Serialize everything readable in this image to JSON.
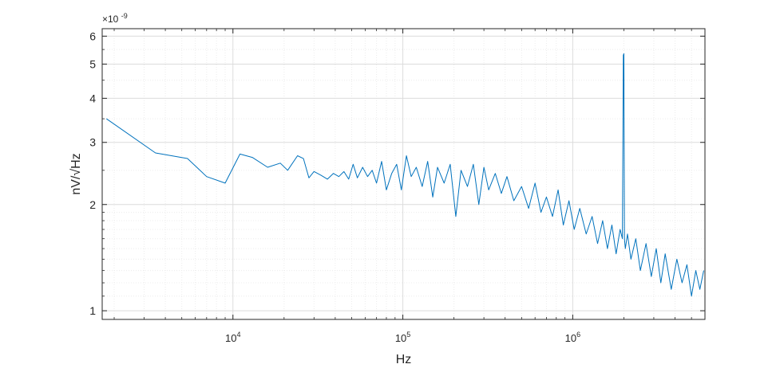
{
  "chart_data": {
    "type": "line",
    "xlabel": "Hz",
    "ylabel": "nV/√Hz",
    "x_scale": "log",
    "y_scale": "log",
    "xlim": [
      1700,
      6000000
    ],
    "ylim": [
      9.45e-10,
      6.3e-09
    ],
    "y_exponent_label": "×10",
    "y_exponent_value": "-9",
    "x_ticks": [
      {
        "value": 10000,
        "base": "10",
        "exp": "4"
      },
      {
        "value": 100000,
        "base": "10",
        "exp": "5"
      },
      {
        "value": 1000000,
        "base": "10",
        "exp": "6"
      }
    ],
    "y_ticks": [
      {
        "value": 1e-09,
        "label": "1"
      },
      {
        "value": 2e-09,
        "label": "2"
      },
      {
        "value": 3e-09,
        "label": "3"
      },
      {
        "value": 4e-09,
        "label": "4"
      },
      {
        "value": 5e-09,
        "label": "5"
      },
      {
        "value": 6e-09,
        "label": "6"
      }
    ],
    "grid": true,
    "minor_grid": true,
    "line_color": "#0072BD",
    "series": [
      {
        "x": [
          1800,
          3500,
          5400,
          7000,
          9000,
          11000,
          13000,
          16000,
          19000,
          21000,
          24000,
          26000,
          28000,
          30000,
          33000,
          36000,
          39000,
          42000,
          45000,
          48000,
          51000,
          54000,
          58000,
          62000,
          66000,
          70000,
          75000,
          80000,
          86000,
          92000,
          98000,
          105000,
          112000,
          120000,
          130000,
          140000,
          150000,
          160000,
          175000,
          190000,
          205000,
          220000,
          240000,
          260000,
          280000,
          300000,
          320000,
          350000,
          380000,
          410000,
          450000,
          500000,
          550000,
          600000,
          650000,
          700000,
          760000,
          820000,
          880000,
          950000,
          1020000,
          1100000,
          1200000,
          1300000,
          1400000,
          1500000,
          1600000,
          1700000,
          1800000,
          1900000,
          1960000,
          1985000,
          2000000,
          2015000,
          2040000,
          2100000,
          2200000,
          2350000,
          2500000,
          2700000,
          2900000,
          3100000,
          3300000,
          3500000,
          3800000,
          4100000,
          4400000,
          4700000,
          5000000,
          5300000,
          5600000,
          5900000
        ],
        "values": [
          3.5e-09,
          2.8e-09,
          2.7e-09,
          2.4e-09,
          2.3e-09,
          2.78e-09,
          2.72e-09,
          2.55e-09,
          2.62e-09,
          2.5e-09,
          2.75e-09,
          2.7e-09,
          2.38e-09,
          2.48e-09,
          2.42e-09,
          2.36e-09,
          2.45e-09,
          2.4e-09,
          2.48e-09,
          2.36e-09,
          2.6e-09,
          2.38e-09,
          2.55e-09,
          2.4e-09,
          2.5e-09,
          2.3e-09,
          2.65e-09,
          2.2e-09,
          2.45e-09,
          2.6e-09,
          2.2e-09,
          2.75e-09,
          2.4e-09,
          2.55e-09,
          2.25e-09,
          2.65e-09,
          2.1e-09,
          2.55e-09,
          2.3e-09,
          2.6e-09,
          1.85e-09,
          2.5e-09,
          2.25e-09,
          2.6e-09,
          2e-09,
          2.55e-09,
          2.2e-09,
          2.45e-09,
          2.15e-09,
          2.4e-09,
          2.05e-09,
          2.25e-09,
          1.95e-09,
          2.3e-09,
          1.9e-09,
          2.1e-09,
          1.85e-09,
          2.2e-09,
          1.75e-09,
          2.05e-09,
          1.7e-09,
          1.95e-09,
          1.65e-09,
          1.85e-09,
          1.55e-09,
          1.8e-09,
          1.5e-09,
          1.75e-09,
          1.45e-09,
          1.7e-09,
          1.6e-09,
          5.3e-09,
          5.35e-09,
          1.6e-09,
          1.5e-09,
          1.65e-09,
          1.4e-09,
          1.6e-09,
          1.3e-09,
          1.55e-09,
          1.25e-09,
          1.5e-09,
          1.2e-09,
          1.45e-09,
          1.15e-09,
          1.4e-09,
          1.2e-09,
          1.35e-09,
          1.1e-09,
          1.3e-09,
          1.15e-09,
          1.3e-09
        ]
      }
    ]
  }
}
